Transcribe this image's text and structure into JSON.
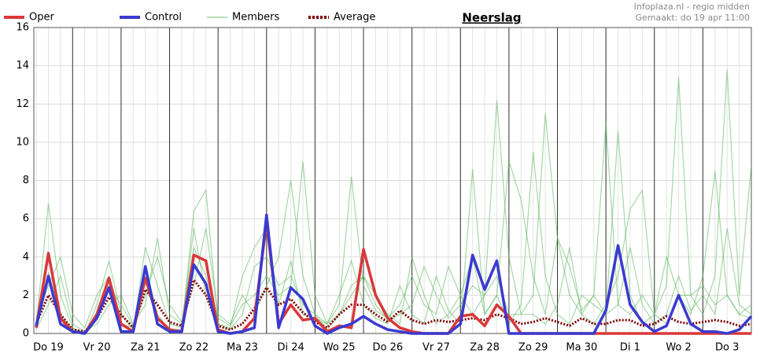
{
  "chart_data": {
    "type": "line",
    "title": "Neerslag",
    "source": "Infoplaza.nl - regio midden",
    "created": "Gemaakt: do 19 apr 11:00",
    "x": [
      0.25,
      0.5,
      0.75,
      1,
      1.25,
      1.5,
      1.75,
      2,
      2.25,
      2.5,
      2.75,
      3,
      3.25,
      3.5,
      3.75,
      4,
      4.25,
      4.5,
      4.75,
      5,
      5.25,
      5.5,
      5.75,
      6,
      6.25,
      6.5,
      6.75,
      7,
      7.25,
      7.5,
      7.75,
      8,
      8.25,
      8.5,
      8.75,
      9,
      9.25,
      9.5,
      9.75,
      10,
      10.25,
      10.5,
      10.75,
      11,
      11.25,
      11.5,
      11.75,
      12,
      12.25,
      12.5,
      12.75,
      13,
      13.25,
      13.5,
      13.75,
      14,
      14.25,
      14.5,
      14.75,
      15
    ],
    "xlim": [
      0.2,
      15
    ],
    "xticks": [
      {
        "value": 0.5,
        "label": "Do 19"
      },
      {
        "value": 1.5,
        "label": "Vr 20"
      },
      {
        "value": 2.5,
        "label": "Za 21"
      },
      {
        "value": 3.5,
        "label": "Zo 22"
      },
      {
        "value": 4.5,
        "label": "Ma 23"
      },
      {
        "value": 5.5,
        "label": "Di 24"
      },
      {
        "value": 6.5,
        "label": "Wo 25"
      },
      {
        "value": 7.5,
        "label": "Do 26"
      },
      {
        "value": 8.5,
        "label": "Vr 27"
      },
      {
        "value": 9.5,
        "label": "Za 28"
      },
      {
        "value": 10.5,
        "label": "Zo 29"
      },
      {
        "value": 11.5,
        "label": "Ma 30"
      },
      {
        "value": 12.5,
        "label": "Di 1"
      },
      {
        "value": 13.5,
        "label": "Wo 2"
      },
      {
        "value": 14.5,
        "label": "Do 3"
      }
    ],
    "ylim": [
      0,
      16
    ],
    "yticks": [
      0,
      2,
      4,
      6,
      8,
      10,
      12,
      14,
      16
    ],
    "grid": true,
    "series": [
      {
        "name": "Members",
        "color": "#5cb85c",
        "members": [
          [
            0.5,
            6.8,
            2,
            0.3,
            0,
            1.5,
            3.8,
            1,
            0.2,
            4.5,
            2.5,
            0.5,
            0.3,
            5.5,
            2,
            0.5,
            0.2,
            1,
            3.5,
            4,
            2.5,
            3,
            1.5,
            1,
            0.5,
            2,
            3.8,
            1.5,
            0.8,
            0.5,
            2.5,
            1,
            0.5,
            3,
            1.2,
            0.5,
            8.6,
            1,
            2,
            0.5,
            1.5,
            9.5,
            3,
            1,
            0.5,
            2,
            1.5,
            1,
            10.6,
            2,
            0.5,
            1,
            2.5,
            13.4,
            2,
            1,
            3,
            13.8,
            2,
            8.8
          ],
          [
            0.2,
            1.5,
            3,
            0.5,
            0.1,
            0.5,
            1.5,
            2,
            0.5,
            1.5,
            5,
            1,
            0.5,
            2.5,
            5.5,
            1,
            0.5,
            2,
            1,
            2.5,
            4,
            8,
            3,
            1,
            0.2,
            1,
            2.5,
            3,
            2,
            1,
            0.5,
            4,
            2,
            0.5,
            1,
            2,
            1,
            2,
            12.2,
            4,
            1,
            2,
            11.5,
            5,
            2,
            1,
            0.5,
            1.5,
            3,
            6.5,
            7.5,
            1,
            0.5,
            2,
            1,
            3,
            8.5,
            2,
            1,
            1.5
          ],
          [
            0.8,
            2.5,
            4,
            1,
            0.3,
            2,
            3,
            0.5,
            0.3,
            3.5,
            1,
            0.2,
            0.2,
            6.4,
            7.5,
            0.5,
            0.3,
            3,
            4.5,
            5.5,
            1.5,
            3.8,
            1,
            0.8,
            0.5,
            1.5,
            8.2,
            2.5,
            1.2,
            0.8,
            1.5,
            3,
            1.5,
            1,
            3.5,
            2,
            4,
            1,
            2,
            9,
            7,
            3,
            1,
            5,
            3.5,
            1.2,
            2,
            1,
            1.5,
            4.5,
            1.5,
            0.5,
            1,
            3,
            1.2,
            2,
            1,
            5.5,
            1.5,
            1
          ],
          [
            0.3,
            3.2,
            1,
            0.2,
            0.1,
            1,
            2.5,
            1.5,
            0.4,
            2,
            4,
            1.5,
            0.6,
            4.5,
            3,
            0.8,
            0.4,
            1.5,
            2,
            3,
            2,
            2.5,
            9,
            2,
            0.5,
            1,
            2,
            3,
            1.5,
            0.7,
            1,
            1.5,
            3.5,
            2,
            0.8,
            1.5,
            2.5,
            2,
            3,
            1,
            1,
            1,
            0.5,
            1.5,
            4.5,
            1,
            2,
            11,
            1.5,
            1,
            2,
            1,
            4,
            2,
            2,
            2.5,
            1.5,
            2,
            1,
            0.8
          ]
        ]
      },
      {
        "name": "Average",
        "color": "#800000",
        "dashed": true,
        "values": [
          0.5,
          2.0,
          1.0,
          0.2,
          0.1,
          0.8,
          1.9,
          1.0,
          0.3,
          2.3,
          1.5,
          0.6,
          0.4,
          2.8,
          2.0,
          0.4,
          0.2,
          0.5,
          1.3,
          2.4,
          1.5,
          1.8,
          1.1,
          0.6,
          0.3,
          1.0,
          1.5,
          1.5,
          1.0,
          0.6,
          1.2,
          0.7,
          0.5,
          0.7,
          0.6,
          0.7,
          0.8,
          0.7,
          1.0,
          0.8,
          0.5,
          0.6,
          0.8,
          0.6,
          0.4,
          0.8,
          0.5,
          0.5,
          0.7,
          0.7,
          0.4,
          0.5,
          0.9,
          0.6,
          0.5,
          0.6,
          0.7,
          0.6,
          0.4,
          0.5
        ]
      },
      {
        "name": "Oper",
        "color": "#d9383a",
        "values": [
          0.3,
          4.2,
          0.8,
          0.1,
          0,
          1.0,
          2.9,
          0.5,
          0.1,
          2.9,
          0.8,
          0.2,
          0.1,
          4.1,
          3.8,
          0.2,
          0,
          0.1,
          0.8,
          5.8,
          0.5,
          1.5,
          0.7,
          0.8,
          0.1,
          0.4,
          0.3,
          4.4,
          2.0,
          0.8,
          0.3,
          0.1,
          0,
          0,
          0,
          0.9,
          1.0,
          0.4,
          1.5,
          0.9,
          0,
          0,
          0,
          0,
          0,
          0,
          0,
          0,
          0,
          0,
          0,
          0,
          0,
          0,
          0,
          0,
          0,
          0,
          0,
          0
        ]
      },
      {
        "name": "Control",
        "color": "#3a3ad0",
        "values": [
          0.4,
          3.0,
          0.5,
          0.1,
          0,
          0.8,
          2.4,
          0.1,
          0.1,
          3.5,
          0.5,
          0.1,
          0.1,
          3.6,
          2.6,
          0.1,
          0,
          0.1,
          0.3,
          6.2,
          0.3,
          2.4,
          1.8,
          0.4,
          0,
          0.3,
          0.5,
          0.9,
          0.5,
          0.2,
          0.1,
          0,
          0,
          0,
          0,
          0.5,
          4.1,
          2.3,
          3.8,
          0,
          0,
          0,
          0,
          0,
          0,
          0,
          0,
          1.2,
          4.6,
          1.5,
          0.6,
          0.1,
          0.4,
          2.0,
          0.5,
          0.1,
          0.1,
          0,
          0.2,
          0.9
        ]
      }
    ],
    "legend_order": [
      2,
      3,
      0,
      1
    ]
  }
}
